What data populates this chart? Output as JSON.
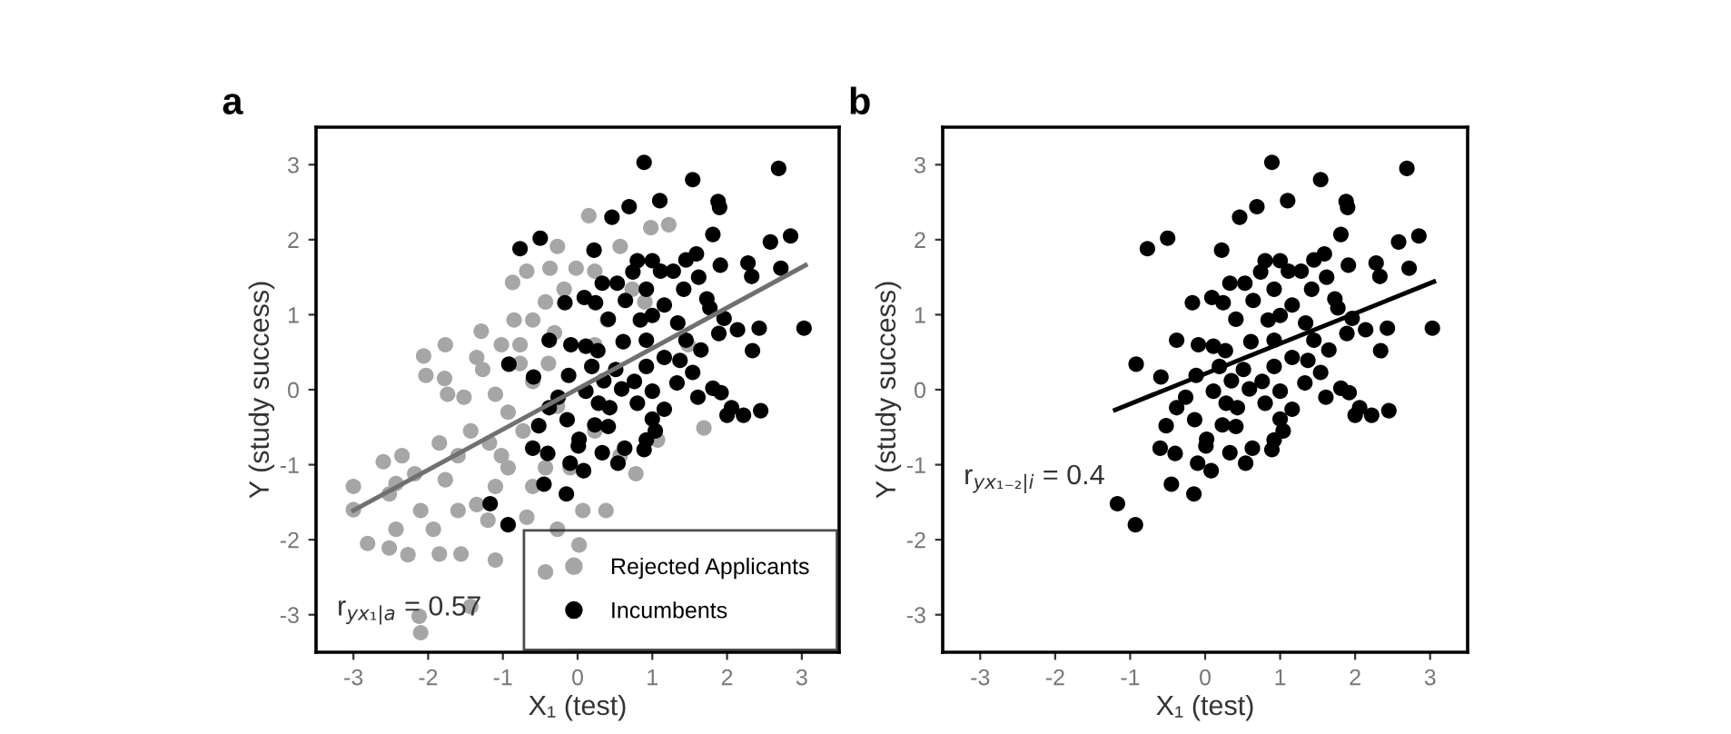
{
  "chart_data": [
    {
      "type": "scatter",
      "title": "a",
      "xlabel": "X₁ (test)",
      "ylabel": "Y (study success)",
      "xlim": [
        -3.5,
        3.5
      ],
      "ylim": [
        -3.5,
        3.5
      ],
      "xticks": [
        -3,
        -2,
        -1,
        0,
        1,
        2,
        3
      ],
      "yticks": [
        -3,
        -2,
        -1,
        0,
        1,
        2,
        3
      ],
      "grid": false,
      "legend": "bottom right",
      "annotations": [
        "r$_{yx₁|a}$ = 0.57"
      ],
      "series": [
        {
          "name": "Rejected Applicants",
          "color": "#a6a6a6",
          "marker": "circle",
          "x": [
            -3.0,
            -3.0,
            -2.81,
            -2.52,
            -2.43,
            -2.35,
            -2.52,
            -2.27,
            -2.12,
            -2.1,
            -2.06,
            -2.03,
            -2.1,
            -1.93,
            -1.77,
            -1.78,
            -1.74,
            -1.85,
            -1.77,
            -1.56,
            -1.43,
            -1.52,
            -1.43,
            -1.29,
            -1.35,
            -1.27,
            -1.35,
            -1.2,
            -1.1,
            -1.02,
            -0.93,
            -0.87,
            -0.85,
            -0.77,
            -0.68,
            -0.77,
            -0.6,
            -1.1,
            -0.73,
            -0.6,
            -0.68,
            -0.43,
            -0.43,
            -0.37,
            -0.27,
            -0.31,
            -0.39,
            -0.27,
            -0.02,
            0.15,
            0.23,
            0.4,
            0.07,
            0.02,
            0.38,
            0.57,
            0.73,
            0.98,
            1.22,
            0.9,
            1.48,
            1.69,
            1.07,
            0.78,
            0.57,
            -0.1,
            0.23,
            -1.18,
            -1.6,
            -0.93,
            -0.43,
            -1.02,
            -0.6,
            -0.18,
            0.23,
            -0.27,
            -1.1,
            -1.6,
            -1.85,
            -2.43,
            -2.18,
            -2.6
          ],
          "values": [
            -1.29,
            -1.6,
            -2.05,
            -1.39,
            -1.25,
            -0.88,
            -2.11,
            -2.2,
            -3.02,
            -3.24,
            0.45,
            0.19,
            -1.61,
            -1.86,
            0.6,
            0.15,
            -0.06,
            -0.71,
            -1.2,
            -2.19,
            -2.89,
            -0.1,
            -0.55,
            0.78,
            0.43,
            0.27,
            -1.53,
            -1.74,
            -2.27,
            -0.88,
            -0.3,
            1.43,
            0.93,
            0.6,
            1.58,
            0.35,
            0.11,
            -0.06,
            -0.55,
            -1.29,
            -1.7,
            -2.43,
            1.17,
            1.62,
            1.91,
            0.76,
            0.35,
            -1.86,
            1.62,
            2.32,
            1.58,
            0.93,
            -1.61,
            -2.07,
            -1.61,
            1.91,
            1.34,
            2.16,
            2.2,
            1.17,
            0.6,
            -0.51,
            -0.67,
            -1.12,
            -0.88,
            -1.04,
            -0.55,
            -0.71,
            -0.88,
            -1.04,
            -1.04,
            0.6,
            0.93,
            1.34,
            0.6,
            -0.22,
            -1.29,
            -1.61,
            -2.19,
            -1.86,
            -1.12,
            -0.96
          ]
        },
        {
          "name": "Incumbents",
          "color": "#000000",
          "marker": "circle",
          "x": [
            0.89,
            2.69,
            1.54,
            1.1,
            0.69,
            0.46,
            1.88,
            1.9,
            -0.5,
            -0.77,
            0.22,
            1.81,
            2.58,
            2.85,
            2.28,
            2.33,
            2.72,
            1.59,
            1.45,
            0.8,
            1.0,
            0.74,
            1.11,
            1.28,
            1.62,
            1.91,
            0.33,
            0.53,
            0.92,
            1.42,
            -0.17,
            0.09,
            0.24,
            0.64,
            1.16,
            1.73,
            1.77,
            0.41,
            0.84,
            1.0,
            1.34,
            1.96,
            3.03,
            2.43,
            2.14,
            1.89,
            -0.38,
            -0.09,
            0.11,
            0.27,
            0.61,
            0.92,
            1.45,
            1.65,
            2.34,
            1.16,
            -0.92,
            0.19,
            0.51,
            0.92,
            1.37,
            1.54,
            -0.59,
            -0.12,
            0.35,
            0.76,
            1.33,
            1.81,
            0.11,
            0.59,
            1.0,
            1.92,
            -0.26,
            0.28,
            0.8,
            1.61,
            -0.38,
            0.43,
            1.16,
            2.06,
            2.45,
            2.22,
            2.0,
            0.23,
            -0.52,
            0.41,
            1.0,
            1.04,
            0.92,
            -0.14,
            0.02,
            0.01,
            -0.6,
            -0.4,
            0.33,
            0.63,
            0.89,
            -0.1,
            0.54,
            0.08,
            -0.45,
            -0.15,
            -1.17,
            -0.93
          ],
          "values": [
            3.03,
            2.95,
            2.8,
            2.52,
            2.44,
            2.3,
            2.51,
            2.43,
            2.02,
            1.88,
            1.86,
            2.07,
            1.97,
            2.05,
            1.69,
            1.51,
            1.62,
            1.81,
            1.73,
            1.72,
            1.72,
            1.57,
            1.58,
            1.58,
            1.5,
            1.66,
            1.42,
            1.42,
            1.34,
            1.34,
            1.16,
            1.23,
            1.16,
            1.19,
            1.13,
            1.21,
            1.09,
            0.94,
            0.93,
            0.99,
            0.89,
            0.95,
            0.82,
            0.82,
            0.8,
            0.75,
            0.66,
            0.6,
            0.58,
            0.52,
            0.64,
            0.66,
            0.66,
            0.53,
            0.52,
            0.43,
            0.34,
            0.31,
            0.27,
            0.31,
            0.39,
            0.23,
            0.17,
            0.19,
            0.12,
            0.11,
            0.09,
            0.02,
            -0.02,
            0.01,
            -0.02,
            -0.04,
            -0.1,
            -0.18,
            -0.18,
            -0.1,
            -0.24,
            -0.24,
            -0.26,
            -0.24,
            -0.28,
            -0.34,
            -0.34,
            -0.47,
            -0.48,
            -0.49,
            -0.39,
            -0.55,
            -0.67,
            -0.4,
            -0.66,
            -0.75,
            -0.78,
            -0.85,
            -0.84,
            -0.78,
            -0.8,
            -0.98,
            -0.98,
            -1.08,
            -1.26,
            -1.39,
            -1.52,
            -1.8
          ]
        },
        {
          "color": "#707070",
          "type": "line",
          "x": [
            -3.0,
            3.05
          ],
          "values": [
            -1.61,
            1.66
          ]
        }
      ]
    },
    {
      "type": "scatter",
      "title": "b",
      "xlabel": "X₁ (test)",
      "ylabel": "Y (study success)",
      "xlim": [
        -3.5,
        3.5
      ],
      "ylim": [
        -3.5,
        3.5
      ],
      "xticks": [
        -3,
        -2,
        -1,
        0,
        1,
        2,
        3
      ],
      "yticks": [
        -3,
        -2,
        -1,
        0,
        1,
        2,
        3
      ],
      "grid": false,
      "annotations": [
        "r$_{yx₁₋₂|i}$ = 0.4"
      ],
      "series": [
        {
          "color": "#000000",
          "marker": "circle",
          "x": [
            0.89,
            2.69,
            1.54,
            1.1,
            0.69,
            0.46,
            1.88,
            1.9,
            -0.5,
            -0.77,
            0.22,
            1.81,
            2.58,
            2.85,
            2.28,
            2.33,
            2.72,
            1.59,
            1.45,
            0.8,
            1.0,
            0.74,
            1.11,
            1.28,
            1.62,
            1.91,
            0.33,
            0.53,
            0.92,
            1.42,
            -0.17,
            0.09,
            0.24,
            0.64,
            1.16,
            1.73,
            1.77,
            0.41,
            0.84,
            1.0,
            1.34,
            1.96,
            3.03,
            2.43,
            2.14,
            1.89,
            -0.38,
            -0.09,
            0.11,
            0.27,
            0.61,
            0.92,
            1.45,
            1.65,
            2.34,
            1.16,
            -0.92,
            0.19,
            0.51,
            0.92,
            1.37,
            1.54,
            -0.59,
            -0.12,
            0.35,
            0.76,
            1.33,
            1.81,
            0.11,
            0.59,
            1.0,
            1.92,
            -0.26,
            0.28,
            0.8,
            1.61,
            -0.38,
            0.43,
            1.16,
            2.06,
            2.45,
            2.22,
            2.0,
            0.23,
            -0.52,
            0.41,
            1.0,
            1.04,
            0.92,
            -0.14,
            0.02,
            0.01,
            -0.6,
            -0.4,
            0.33,
            0.63,
            0.89,
            -0.1,
            0.54,
            0.08,
            -0.45,
            -0.15,
            -1.17,
            -0.93
          ],
          "values": [
            3.03,
            2.95,
            2.8,
            2.52,
            2.44,
            2.3,
            2.51,
            2.43,
            2.02,
            1.88,
            1.86,
            2.07,
            1.97,
            2.05,
            1.69,
            1.51,
            1.62,
            1.81,
            1.73,
            1.72,
            1.72,
            1.57,
            1.58,
            1.58,
            1.5,
            1.66,
            1.42,
            1.42,
            1.34,
            1.34,
            1.16,
            1.23,
            1.16,
            1.19,
            1.13,
            1.21,
            1.09,
            0.94,
            0.93,
            0.99,
            0.89,
            0.95,
            0.82,
            0.82,
            0.8,
            0.75,
            0.66,
            0.6,
            0.58,
            0.52,
            0.64,
            0.66,
            0.66,
            0.53,
            0.52,
            0.43,
            0.34,
            0.31,
            0.27,
            0.31,
            0.39,
            0.23,
            0.17,
            0.19,
            0.12,
            0.11,
            0.09,
            0.02,
            -0.02,
            0.01,
            -0.02,
            -0.04,
            -0.1,
            -0.18,
            -0.18,
            -0.1,
            -0.24,
            -0.24,
            -0.26,
            -0.24,
            -0.28,
            -0.34,
            -0.34,
            -0.47,
            -0.48,
            -0.49,
            -0.39,
            -0.55,
            -0.67,
            -0.4,
            -0.66,
            -0.75,
            -0.78,
            -0.85,
            -0.84,
            -0.78,
            -0.8,
            -0.98,
            -0.98,
            -1.08,
            -1.26,
            -1.39,
            -1.52,
            -1.8
          ]
        },
        {
          "color": "#000000",
          "type": "line",
          "x": [
            -1.2,
            3.05
          ],
          "values": [
            -0.27,
            1.44
          ]
        }
      ]
    }
  ]
}
